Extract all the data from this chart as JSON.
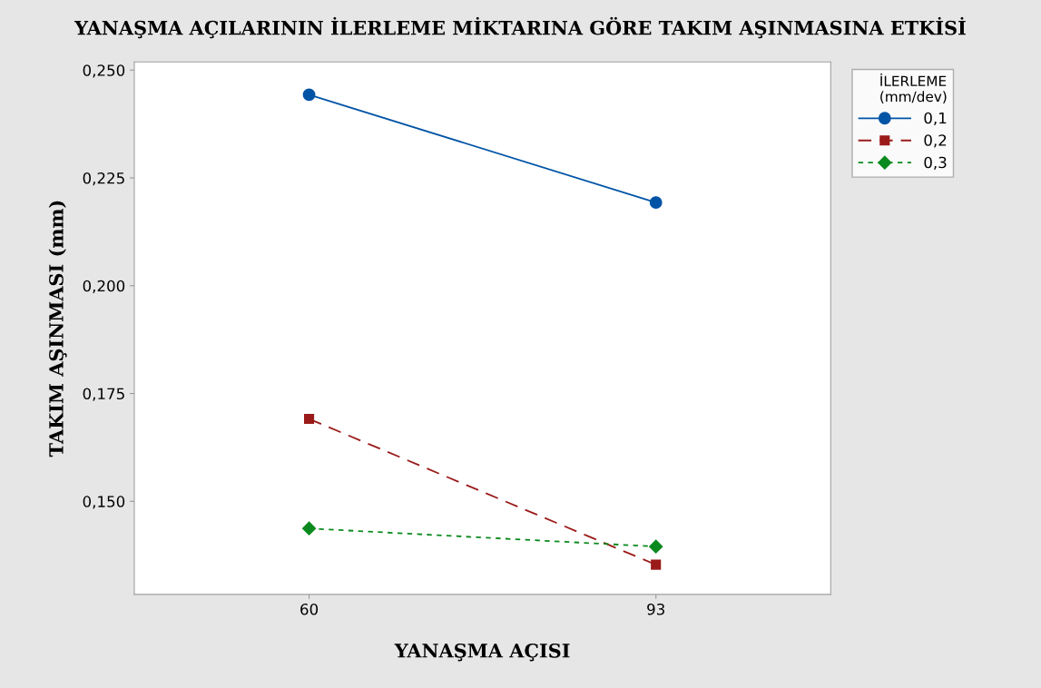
{
  "chart_data": {
    "type": "line",
    "title": "YANAŞMA AÇILARININ İLERLEME MİKTARINA GÖRE TAKIM AŞINMASINA ETKİSİ",
    "xlabel": "YANAŞMA AÇISI",
    "ylabel": "TAKIM AŞINMASI (mm)",
    "legend_title": "İLERLEME\n(mm/dev)",
    "legend": "right",
    "categories": [
      "60",
      "93"
    ],
    "series": [
      {
        "name": "0,1",
        "color": "#0054a6",
        "values": [
          0.2443,
          0.2193
        ],
        "marker": "circle",
        "line_style": "solid"
      },
      {
        "name": "0,2",
        "color": "#9b1b1b",
        "values": [
          0.1691,
          0.1353
        ],
        "marker": "square",
        "line_style": "dashed"
      },
      {
        "name": "0,3",
        "color": "#0a8a1e",
        "values": [
          0.1437,
          0.1395
        ],
        "marker": "diamond",
        "line_style": "dotted"
      }
    ],
    "ylim": [
      0.1284,
      0.2519
    ],
    "yticks": [
      {
        "value": 0.15,
        "label": "0,150"
      },
      {
        "value": 0.175,
        "label": "0,175"
      },
      {
        "value": 0.2,
        "label": "0,200"
      },
      {
        "value": 0.225,
        "label": "0,225"
      },
      {
        "value": 0.25,
        "label": "0,250"
      }
    ],
    "grid": false
  }
}
